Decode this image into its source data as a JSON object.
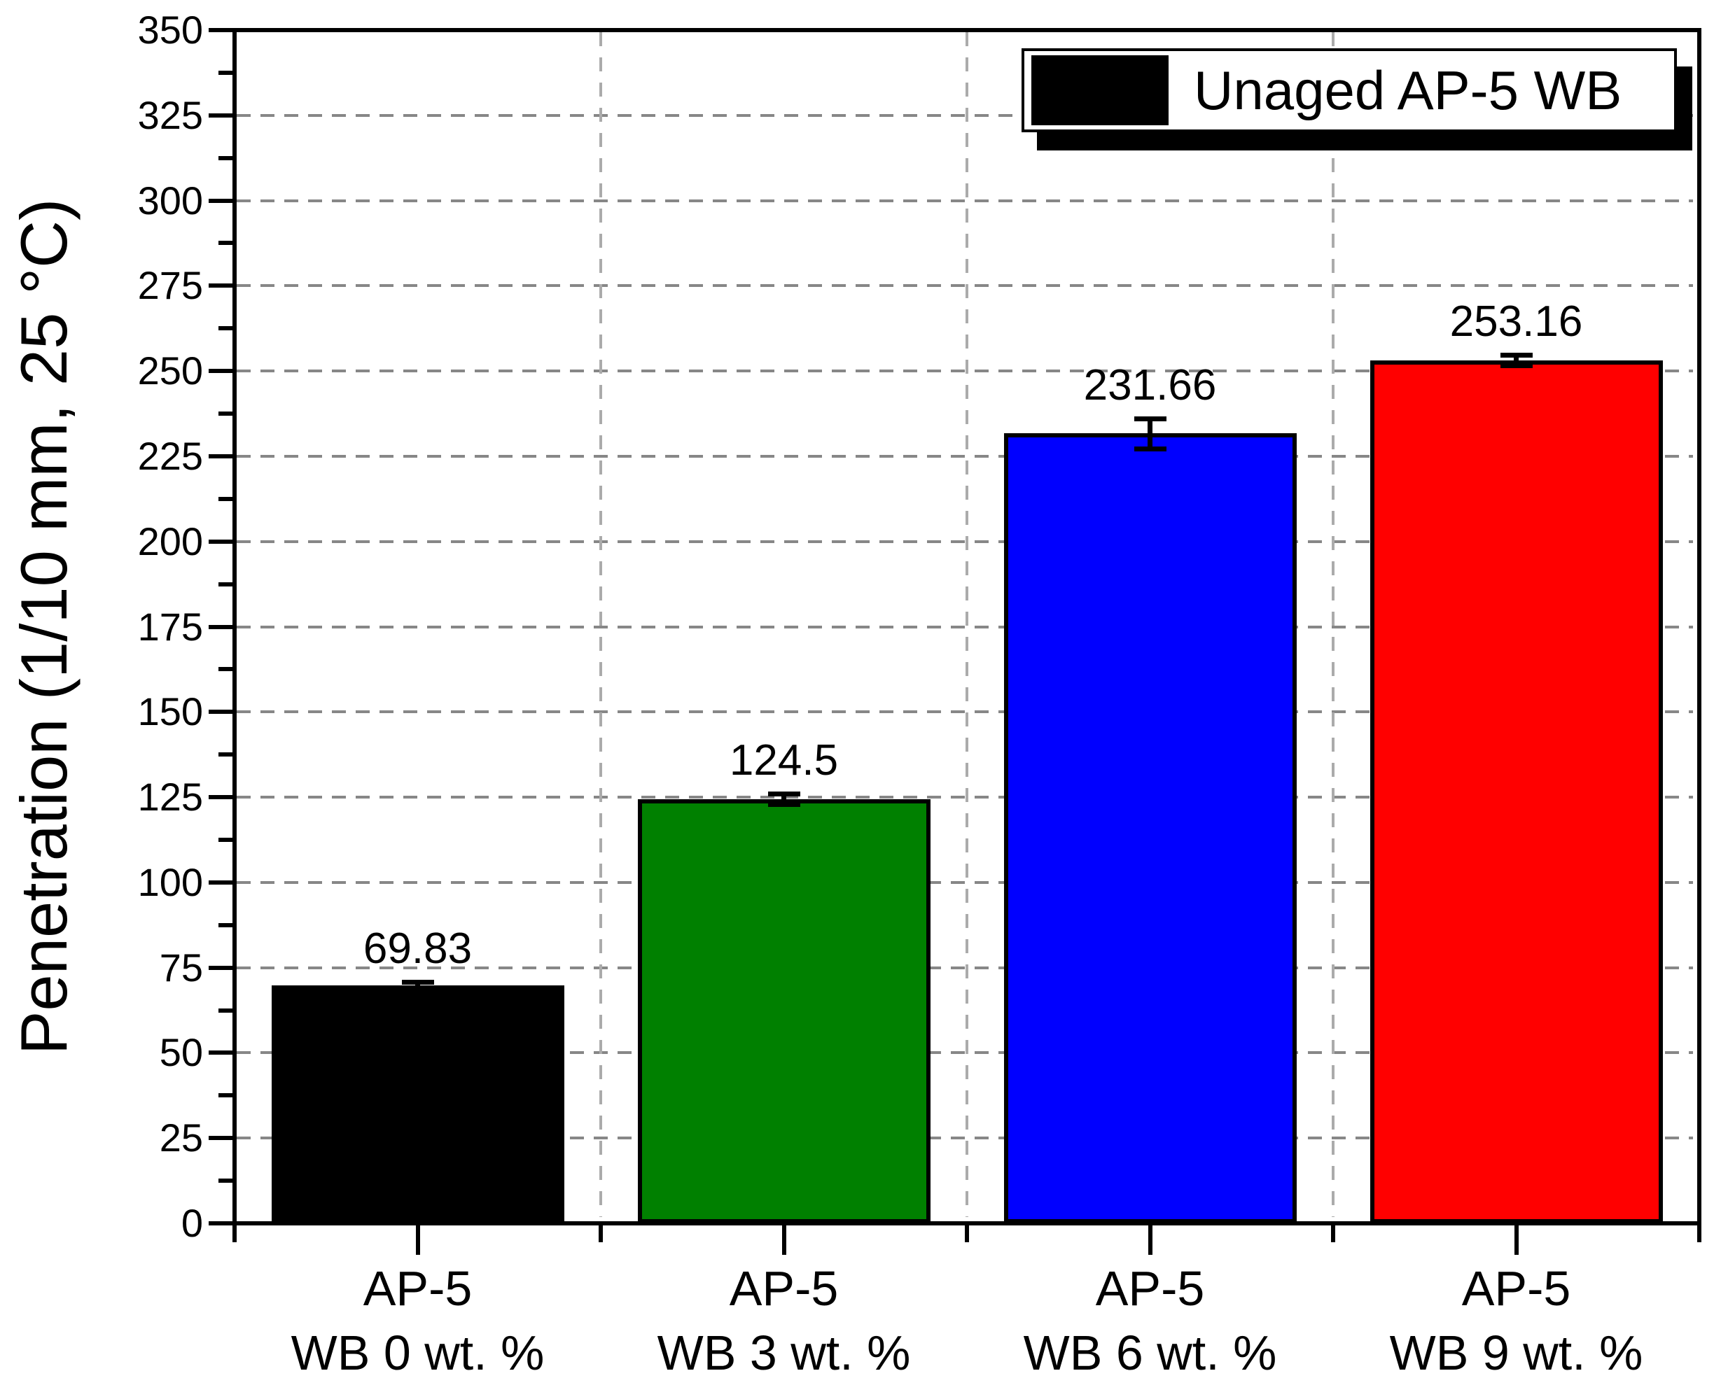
{
  "chart_data": {
    "type": "bar",
    "title": "",
    "xlabel": "",
    "ylabel": "Penetration (1/10 mm, 25 °C)",
    "ylim": [
      0,
      350
    ],
    "y_major_step": 25,
    "y_minor_step": 12.5,
    "y_tick_labels": [
      "0",
      "25",
      "50",
      "75",
      "100",
      "125",
      "150",
      "175",
      "200",
      "225",
      "250",
      "275",
      "300",
      "325",
      "350"
    ],
    "grid": {
      "style": "dashed",
      "h_color": "#878787",
      "v_color": "#ababab",
      "horizontal_at_major_ticks": true,
      "vertical_at_category_boundaries": true
    },
    "categories": [
      {
        "line1": "AP-5",
        "line2": "WB 0 wt. %"
      },
      {
        "line1": "AP-5",
        "line2": "WB 3 wt. %"
      },
      {
        "line1": "AP-5",
        "line2": "WB 6 wt. %"
      },
      {
        "line1": "AP-5",
        "line2": "WB 9 wt. %"
      }
    ],
    "series": [
      {
        "name": "Unaged AP-5 WB",
        "values": [
          69.83,
          124.5,
          231.66,
          253.16
        ],
        "value_labels": [
          "69.83",
          "124.5",
          "231.66",
          "253.16"
        ],
        "errors": [
          1.0,
          1.5,
          4.5,
          1.5
        ],
        "colors": [
          "#000000",
          "#008000",
          "#0000ff",
          "#ff0000"
        ],
        "bar_border_color": "#000000"
      }
    ],
    "legend": {
      "label": "Unaged AP-5 WB",
      "swatch_color": "#000000",
      "position": "top-right",
      "shadow": true
    }
  }
}
